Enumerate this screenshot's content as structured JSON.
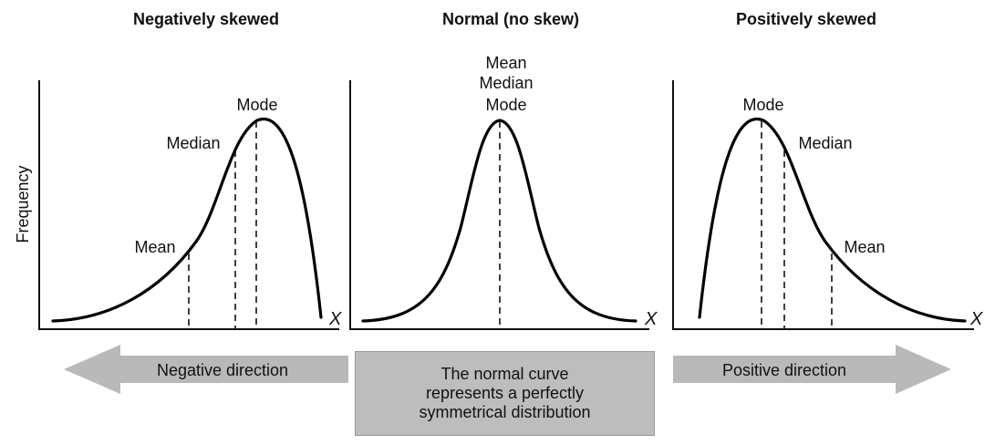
{
  "panels": [
    {
      "title": "Negatively skewed",
      "x_label": "X",
      "markers": {
        "mean": "Mean",
        "median": "Median",
        "mode": "Mode"
      }
    },
    {
      "title": "Normal (no skew)",
      "x_label": "X",
      "markers": {
        "line1": "Mean",
        "line2": "Median",
        "line3": "Mode"
      }
    },
    {
      "title": "Positively skewed",
      "x_label": "X",
      "markers": {
        "mode": "Mode",
        "median": "Median",
        "mean": "Mean"
      }
    }
  ],
  "y_axis_label": "Frequency",
  "bottom": {
    "left_arrow": "Negative direction",
    "right_arrow": "Positive direction",
    "center_caption": [
      "The normal curve",
      "represents a perfectly",
      "symmetrical distribution"
    ]
  },
  "colors": {
    "arrow_fill": "#b9b9b9",
    "caption_box": "#bdbdbd",
    "curve": "#000000"
  }
}
